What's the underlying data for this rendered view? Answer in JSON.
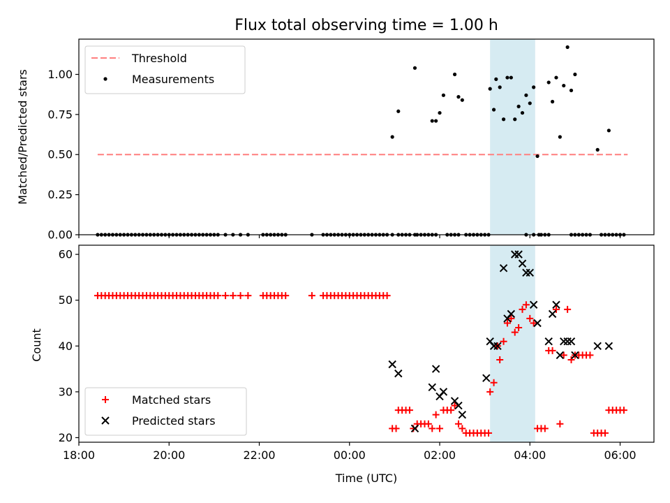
{
  "chart_data": [
    {
      "type": "scatter",
      "title": "Flux total observing time = 1.00 h",
      "xlabel": "",
      "ylabel": "Matched/Predicted stars",
      "xlim": [
        "18:00",
        "06:45"
      ],
      "ylim": [
        0,
        1.22
      ],
      "yticks": [
        "0.00",
        "0.25",
        "0.50",
        "0.75",
        "1.00"
      ],
      "grid": false,
      "legend_position": "top-left",
      "highlight_span": {
        "start": "03:07",
        "end": "04:07",
        "color": "#add8e6"
      },
      "threshold": {
        "name": "Threshold",
        "value": 0.5,
        "x_start": "18:25",
        "x_end": "06:10",
        "color": "#ff7f7f",
        "style": "dashed"
      },
      "series": [
        {
          "name": "Measurements",
          "color": "#000000",
          "marker": "dot",
          "x": [
            "18:25",
            "18:30",
            "18:35",
            "18:40",
            "18:45",
            "18:50",
            "18:55",
            "19:00",
            "19:05",
            "19:10",
            "19:15",
            "19:20",
            "19:25",
            "19:30",
            "19:35",
            "19:40",
            "19:45",
            "19:50",
            "19:55",
            "20:00",
            "20:05",
            "20:10",
            "20:15",
            "20:20",
            "20:25",
            "20:30",
            "20:35",
            "20:40",
            "20:45",
            "20:50",
            "20:55",
            "21:00",
            "21:05",
            "21:15",
            "21:25",
            "21:35",
            "21:45",
            "22:05",
            "22:10",
            "22:15",
            "22:20",
            "22:25",
            "22:30",
            "22:35",
            "23:10",
            "23:25",
            "23:30",
            "23:35",
            "23:40",
            "23:45",
            "23:50",
            "23:55",
            "00:00",
            "00:05",
            "00:10",
            "00:15",
            "00:20",
            "00:25",
            "00:30",
            "00:35",
            "00:40",
            "00:45",
            "00:50",
            "00:57",
            "01:05",
            "01:10",
            "01:15",
            "01:20",
            "01:27",
            "01:30",
            "01:35",
            "01:40",
            "01:45",
            "01:50",
            "01:55",
            "02:10",
            "02:15",
            "02:20",
            "02:25",
            "02:35",
            "02:40",
            "02:45",
            "02:50",
            "02:55",
            "03:00",
            "03:05",
            "03:55",
            "04:05",
            "04:12",
            "04:15",
            "04:20",
            "04:25",
            "04:55",
            "05:00",
            "05:05",
            "05:10",
            "05:15",
            "05:20",
            "05:35",
            "05:40",
            "05:45",
            "05:50",
            "05:55",
            "06:00",
            "06:05",
            "00:57",
            "01:05",
            "01:27",
            "01:50",
            "01:55",
            "02:00",
            "02:05",
            "02:20",
            "02:25",
            "02:30",
            "03:07",
            "03:12",
            "03:15",
            "03:20",
            "03:25",
            "03:30",
            "03:35",
            "03:40",
            "03:45",
            "03:50",
            "03:55",
            "04:00",
            "04:05",
            "04:10",
            "04:25",
            "04:30",
            "04:35",
            "04:40",
            "04:45",
            "04:50",
            "04:55",
            "05:00",
            "05:30",
            "05:45"
          ],
          "y": [
            0,
            0,
            0,
            0,
            0,
            0,
            0,
            0,
            0,
            0,
            0,
            0,
            0,
            0,
            0,
            0,
            0,
            0,
            0,
            0,
            0,
            0,
            0,
            0,
            0,
            0,
            0,
            0,
            0,
            0,
            0,
            0,
            0,
            0,
            0,
            0,
            0,
            0,
            0,
            0,
            0,
            0,
            0,
            0,
            0,
            0,
            0,
            0,
            0,
            0,
            0,
            0,
            0,
            0,
            0,
            0,
            0,
            0,
            0,
            0,
            0,
            0,
            0,
            0,
            0,
            0,
            0,
            0,
            0,
            0,
            0,
            0,
            0,
            0,
            0,
            0,
            0,
            0,
            0,
            0,
            0,
            0,
            0,
            0,
            0,
            0,
            0,
            0,
            0,
            0,
            0,
            0,
            0,
            0,
            0,
            0,
            0,
            0,
            0,
            0,
            0,
            0,
            0,
            0,
            0,
            0.61,
            0.77,
            1.04,
            0.71,
            0.71,
            0.76,
            0.87,
            1.0,
            0.86,
            0.84,
            0.91,
            0.78,
            0.97,
            0.92,
            0.72,
            0.98,
            0.98,
            0.72,
            0.8,
            0.76,
            0.87,
            0.82,
            0.92,
            0.49,
            0.95,
            0.83,
            0.98,
            0.61,
            0.93,
            1.17,
            0.9,
            1.0,
            0.53,
            0.65
          ]
        }
      ]
    },
    {
      "type": "scatter",
      "title": "",
      "xlabel": "Time (UTC)",
      "ylabel": "Count",
      "xlim": [
        "18:00",
        "06:45"
      ],
      "xticks": [
        "18:00",
        "20:00",
        "22:00",
        "00:00",
        "02:00",
        "04:00",
        "06:00"
      ],
      "ylim": [
        19,
        62
      ],
      "yticks": [
        "20",
        "30",
        "40",
        "50",
        "60"
      ],
      "grid": false,
      "legend_position": "bottom-left",
      "highlight_span": {
        "start": "03:07",
        "end": "04:07",
        "color": "#add8e6"
      },
      "series": [
        {
          "name": "Matched stars",
          "color": "#ff0000",
          "marker": "plus",
          "x": [
            "18:25",
            "18:30",
            "18:35",
            "18:40",
            "18:45",
            "18:50",
            "18:55",
            "19:00",
            "19:05",
            "19:10",
            "19:15",
            "19:20",
            "19:25",
            "19:30",
            "19:35",
            "19:40",
            "19:45",
            "19:50",
            "19:55",
            "20:00",
            "20:05",
            "20:10",
            "20:15",
            "20:20",
            "20:25",
            "20:30",
            "20:35",
            "20:40",
            "20:45",
            "20:50",
            "20:55",
            "21:00",
            "21:05",
            "21:15",
            "21:25",
            "21:35",
            "21:45",
            "22:05",
            "22:10",
            "22:15",
            "22:20",
            "22:25",
            "22:30",
            "22:35",
            "23:10",
            "23:25",
            "23:30",
            "23:35",
            "23:40",
            "23:45",
            "23:50",
            "23:55",
            "00:00",
            "00:05",
            "00:10",
            "00:15",
            "00:20",
            "00:25",
            "00:30",
            "00:35",
            "00:40",
            "00:45",
            "00:50",
            "00:57",
            "01:02",
            "01:05",
            "01:10",
            "01:15",
            "01:20",
            "01:25",
            "01:30",
            "01:35",
            "01:40",
            "01:45",
            "01:50",
            "01:55",
            "02:00",
            "02:05",
            "02:10",
            "02:15",
            "02:20",
            "02:25",
            "02:30",
            "02:35",
            "02:40",
            "02:45",
            "02:50",
            "02:55",
            "03:00",
            "03:05",
            "03:07",
            "03:12",
            "03:17",
            "03:20",
            "03:25",
            "03:30",
            "03:35",
            "03:40",
            "03:45",
            "03:50",
            "03:55",
            "04:00",
            "04:05",
            "04:10",
            "04:15",
            "04:20",
            "04:25",
            "04:30",
            "04:35",
            "04:40",
            "04:45",
            "04:50",
            "04:55",
            "05:00",
            "05:05",
            "05:10",
            "05:15",
            "05:20",
            "05:25",
            "05:30",
            "05:35",
            "05:40",
            "05:45",
            "05:50",
            "05:55",
            "06:00",
            "06:05"
          ],
          "y": [
            51,
            51,
            51,
            51,
            51,
            51,
            51,
            51,
            51,
            51,
            51,
            51,
            51,
            51,
            51,
            51,
            51,
            51,
            51,
            51,
            51,
            51,
            51,
            51,
            51,
            51,
            51,
            51,
            51,
            51,
            51,
            51,
            51,
            51,
            51,
            51,
            51,
            51,
            51,
            51,
            51,
            51,
            51,
            51,
            51,
            51,
            51,
            51,
            51,
            51,
            51,
            51,
            51,
            51,
            51,
            51,
            51,
            51,
            51,
            51,
            51,
            51,
            51,
            22,
            22,
            26,
            26,
            26,
            26,
            22,
            23,
            23,
            23,
            23,
            22,
            25,
            22,
            26,
            26,
            26,
            27,
            23,
            22,
            21,
            21,
            21,
            21,
            21,
            21,
            21,
            30,
            32,
            40,
            37,
            41,
            45,
            46,
            43,
            44,
            48,
            49,
            46,
            45,
            22,
            22,
            22,
            39,
            39,
            48,
            23,
            38,
            48,
            37,
            38,
            38,
            38,
            38,
            38,
            21,
            21,
            21,
            21,
            26,
            26,
            26,
            26,
            26
          ]
        },
        {
          "name": "Predicted stars",
          "color": "#000000",
          "marker": "cross",
          "x": [
            "00:57",
            "01:05",
            "01:27",
            "01:50",
            "01:55",
            "02:00",
            "02:05",
            "02:20",
            "02:25",
            "02:30",
            "03:02",
            "03:07",
            "03:12",
            "03:17",
            "03:25",
            "03:30",
            "03:35",
            "03:40",
            "03:45",
            "03:50",
            "03:55",
            "04:00",
            "04:05",
            "04:10",
            "04:25",
            "04:30",
            "04:35",
            "04:40",
            "04:45",
            "04:50",
            "04:55",
            "05:00",
            "05:30",
            "05:45"
          ],
          "y": [
            36,
            34,
            22,
            31,
            35,
            29,
            30,
            28,
            27,
            25,
            33,
            41,
            40,
            40,
            57,
            46,
            47,
            60,
            60,
            58,
            56,
            56,
            49,
            45,
            41,
            47,
            49,
            38,
            41,
            41,
            41,
            38,
            40,
            40
          ]
        }
      ]
    }
  ]
}
